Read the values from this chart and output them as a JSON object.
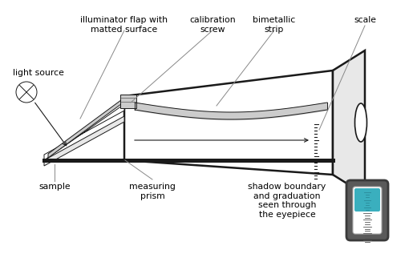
{
  "bg_color": "#ffffff",
  "line_color": "#1a1a1a",
  "dark_gray": "#555555",
  "mid_gray": "#999999",
  "light_gray": "#cccccc",
  "lighter_gray": "#e8e8e8",
  "teal": "#3aafbe",
  "body_outline": "#606060",
  "ann_color": "#888888",
  "labels": {
    "illuminator_flap": "illuminator flap with\nmatted surface",
    "calibration_screw": "calibration\nscrew",
    "bimetallic_strip": "bimetallic\nstrip",
    "scale": "scale",
    "light_source": "light source",
    "sample": "sample",
    "measuring_prism": "measuring\nprism",
    "eyepiece_label": "shadow boundary\nand graduation\nseen through\nthe eyepiece"
  }
}
